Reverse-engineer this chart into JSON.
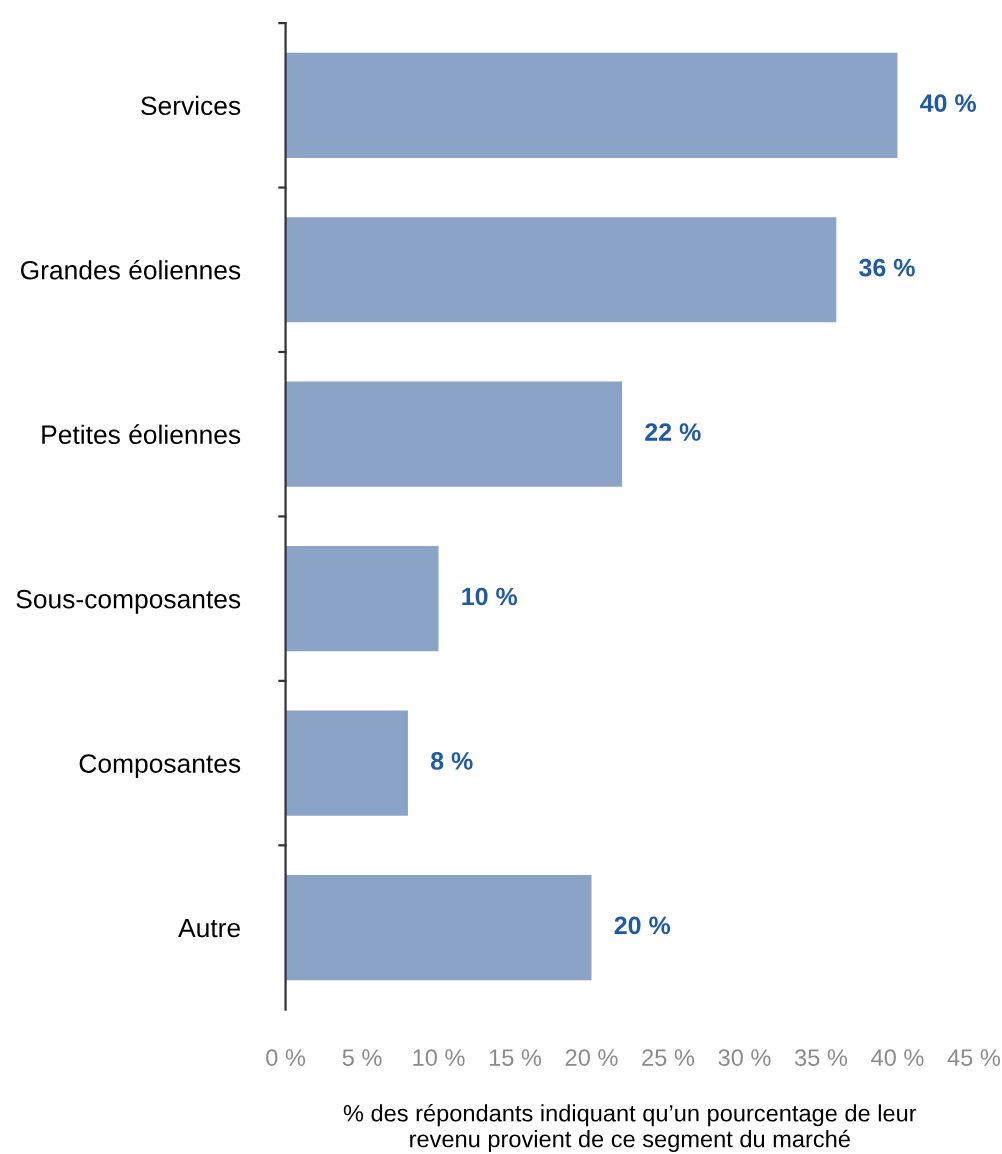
{
  "chart_data": {
    "type": "bar",
    "orientation": "horizontal",
    "categories": [
      "Services",
      "Grandes éoliennes",
      "Petites éoliennes",
      "Sous-composantes",
      "Composantes",
      "Autre"
    ],
    "values": [
      40,
      36,
      22,
      10,
      8,
      20
    ],
    "value_labels": [
      "40 %",
      "36 %",
      "22 %",
      "10 %",
      "8 %",
      "20 %"
    ],
    "color": "#8ca3c8",
    "xlabel": "% des répondants indiquant qu’un pourcentage de leur\nrevenu provient de ce segment du marché",
    "xlim": [
      0,
      45
    ],
    "xticks": [
      {
        "value": 0,
        "label": "0 %"
      },
      {
        "value": 5,
        "label": "5 %"
      },
      {
        "value": 10,
        "label": "10 %"
      },
      {
        "value": 15,
        "label": "15 %"
      },
      {
        "value": 20,
        "label": "20 %"
      },
      {
        "value": 25,
        "label": "25 %"
      },
      {
        "value": 30,
        "label": "30 %"
      },
      {
        "value": 35,
        "label": "35 %"
      },
      {
        "value": 40,
        "label": "40 %"
      },
      {
        "value": 45,
        "label": "45 %"
      }
    ],
    "grid": false
  }
}
